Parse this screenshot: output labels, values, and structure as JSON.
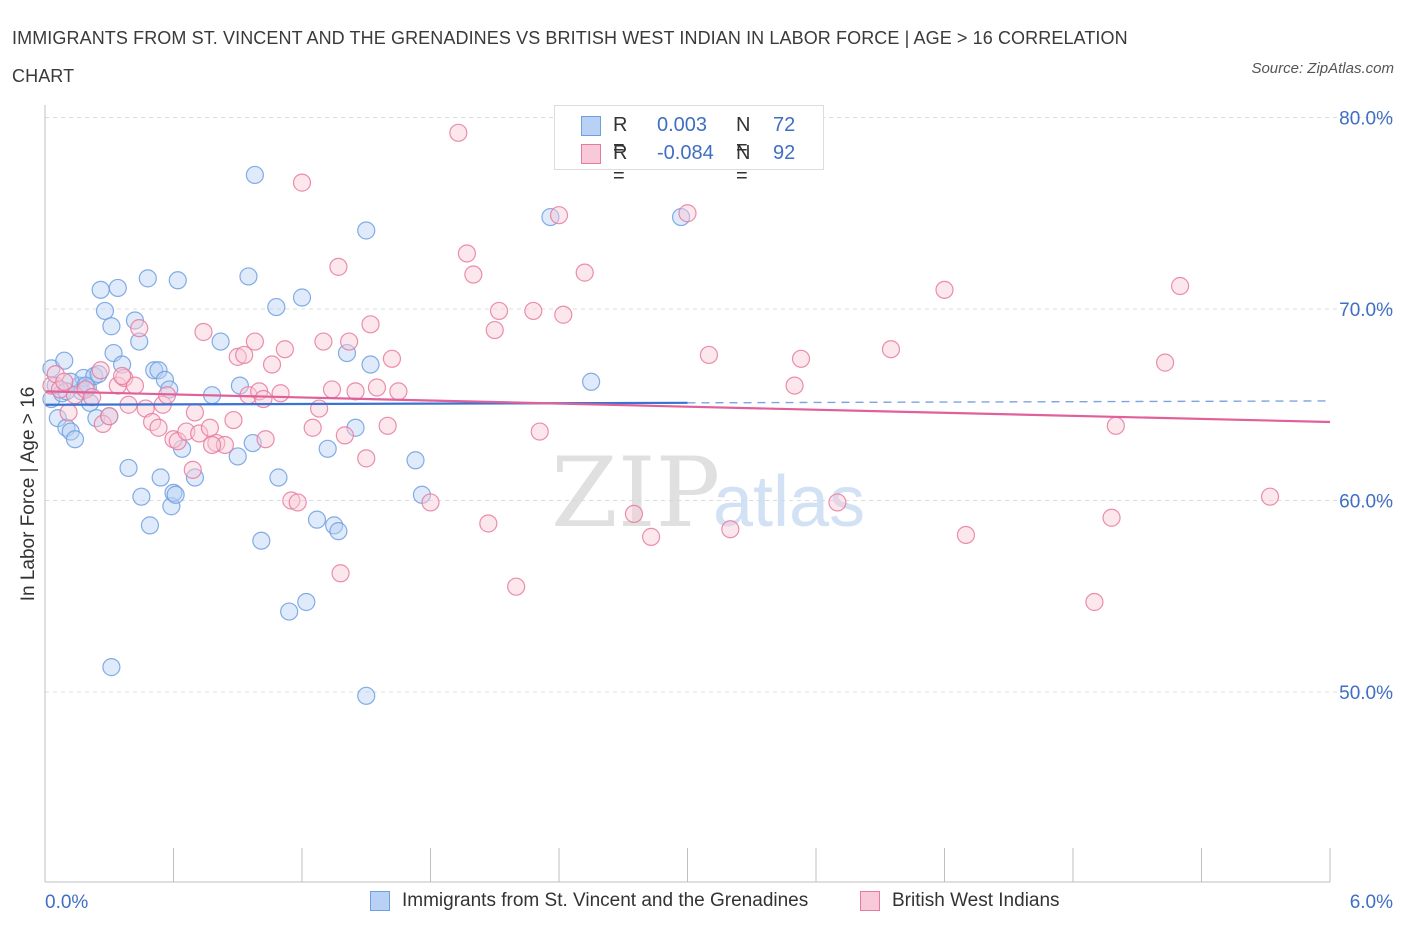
{
  "title": "IMMIGRANTS FROM ST. VINCENT AND THE GRENADINES VS BRITISH WEST INDIAN IN LABOR FORCE | AGE > 16 CORRELATION CHART",
  "source": "Source: ZipAtlas.com",
  "watermark": "ZIPatlas",
  "colors": {
    "blue": "#6f9fe0",
    "blue_fill": "#b9d1f5",
    "pink": "#e87aa0",
    "pink_fill": "#f8c9d8",
    "axis_text": "#3f6fc4"
  },
  "legend": {
    "rows": [
      {
        "r_label": "R =",
        "r_value": "0.003",
        "n_label": "N =",
        "n_value": "72",
        "color": "blue"
      },
      {
        "r_label": "R =",
        "r_value": "-0.084",
        "n_label": "N =",
        "n_value": "92",
        "color": "pink"
      }
    ]
  },
  "chart_data": {
    "type": "scatter",
    "title": "IMMIGRANTS FROM ST. VINCENT AND THE GRENADINES VS BRITISH WEST INDIAN IN LABOR FORCE | AGE > 16 CORRELATION CHART",
    "xlabel": "",
    "ylabel": "In Labor Force | Age > 16",
    "xlim": [
      0,
      6
    ],
    "ylim": [
      40,
      84
    ],
    "x_tick_labels": [
      "0.0%",
      "6.0%"
    ],
    "y_ticks": [
      50,
      60,
      70,
      80
    ],
    "y_tick_labels": [
      "50.0%",
      "60.0%",
      "70.0%",
      "80.0%"
    ],
    "grid": true,
    "series": [
      {
        "name": "Immigrants from St. Vincent and the Grenadines",
        "color": "blue",
        "trend": {
          "x": [
            0.0,
            3.0
          ],
          "y": [
            65.0,
            65.1
          ],
          "dashed_to": [
            6.0,
            65.2
          ]
        },
        "points": [
          [
            0.03,
            66.9
          ],
          [
            0.03,
            65.3
          ],
          [
            0.05,
            66.0
          ],
          [
            0.06,
            64.3
          ],
          [
            0.09,
            67.3
          ],
          [
            0.1,
            63.8
          ],
          [
            0.12,
            63.6
          ],
          [
            0.14,
            63.2
          ],
          [
            0.16,
            66.0
          ],
          [
            0.17,
            65.7
          ],
          [
            0.18,
            66.4
          ],
          [
            0.2,
            65.9
          ],
          [
            0.21,
            65.1
          ],
          [
            0.23,
            66.5
          ],
          [
            0.24,
            64.3
          ],
          [
            0.26,
            71.0
          ],
          [
            0.28,
            69.9
          ],
          [
            0.3,
            64.4
          ],
          [
            0.31,
            69.1
          ],
          [
            0.32,
            67.7
          ],
          [
            0.34,
            71.1
          ],
          [
            0.36,
            67.1
          ],
          [
            0.39,
            61.7
          ],
          [
            0.42,
            69.4
          ],
          [
            0.44,
            68.3
          ],
          [
            0.45,
            60.2
          ],
          [
            0.48,
            71.6
          ],
          [
            0.49,
            58.7
          ],
          [
            0.51,
            66.8
          ],
          [
            0.53,
            66.8
          ],
          [
            0.54,
            61.2
          ],
          [
            0.56,
            66.3
          ],
          [
            0.58,
            65.8
          ],
          [
            0.59,
            59.7
          ],
          [
            0.6,
            60.4
          ],
          [
            0.61,
            60.3
          ],
          [
            0.62,
            71.5
          ],
          [
            0.64,
            62.7
          ],
          [
            0.7,
            61.2
          ],
          [
            0.78,
            65.5
          ],
          [
            0.82,
            68.3
          ],
          [
            0.9,
            62.3
          ],
          [
            0.91,
            66.0
          ],
          [
            0.95,
            71.7
          ],
          [
            0.97,
            63.0
          ],
          [
            0.98,
            77.0
          ],
          [
            1.01,
            57.9
          ],
          [
            1.08,
            70.1
          ],
          [
            1.09,
            61.2
          ],
          [
            1.14,
            54.2
          ],
          [
            1.2,
            70.6
          ],
          [
            1.22,
            54.7
          ],
          [
            1.27,
            59.0
          ],
          [
            1.32,
            62.7
          ],
          [
            1.35,
            58.7
          ],
          [
            1.37,
            58.4
          ],
          [
            1.41,
            67.7
          ],
          [
            1.45,
            63.8
          ],
          [
            1.5,
            74.1
          ],
          [
            1.5,
            49.8
          ],
          [
            1.52,
            67.1
          ],
          [
            1.73,
            62.1
          ],
          [
            1.76,
            60.3
          ],
          [
            2.36,
            74.8
          ],
          [
            2.55,
            66.2
          ],
          [
            2.97,
            74.8
          ],
          [
            0.31,
            51.3
          ],
          [
            0.08,
            65.6
          ],
          [
            0.12,
            66.2
          ],
          [
            0.19,
            66.0
          ],
          [
            0.25,
            66.6
          ],
          [
            0.1,
            65.7
          ]
        ]
      },
      {
        "name": "British West Indians",
        "color": "pink",
        "trend": {
          "x": [
            0.0,
            6.0
          ],
          "y": [
            65.7,
            64.1
          ]
        },
        "points": [
          [
            0.03,
            66.0
          ],
          [
            0.05,
            66.6
          ],
          [
            0.07,
            65.8
          ],
          [
            0.09,
            66.2
          ],
          [
            0.11,
            64.6
          ],
          [
            0.14,
            65.5
          ],
          [
            0.19,
            65.8
          ],
          [
            0.22,
            65.4
          ],
          [
            0.26,
            66.8
          ],
          [
            0.27,
            64.0
          ],
          [
            0.3,
            64.4
          ],
          [
            0.34,
            66.0
          ],
          [
            0.37,
            66.4
          ],
          [
            0.39,
            65.0
          ],
          [
            0.42,
            66.0
          ],
          [
            0.44,
            69.0
          ],
          [
            0.47,
            64.8
          ],
          [
            0.5,
            64.1
          ],
          [
            0.53,
            63.8
          ],
          [
            0.55,
            65.0
          ],
          [
            0.57,
            65.5
          ],
          [
            0.6,
            63.2
          ],
          [
            0.62,
            63.1
          ],
          [
            0.66,
            63.6
          ],
          [
            0.69,
            61.6
          ],
          [
            0.7,
            64.6
          ],
          [
            0.72,
            63.5
          ],
          [
            0.74,
            68.8
          ],
          [
            0.77,
            63.8
          ],
          [
            0.8,
            63.0
          ],
          [
            0.84,
            62.9
          ],
          [
            0.88,
            64.2
          ],
          [
            0.9,
            67.5
          ],
          [
            0.93,
            67.6
          ],
          [
            0.95,
            65.5
          ],
          [
            0.98,
            68.3
          ],
          [
            1.0,
            65.7
          ],
          [
            1.03,
            63.2
          ],
          [
            1.06,
            67.1
          ],
          [
            1.1,
            65.6
          ],
          [
            1.12,
            67.9
          ],
          [
            1.15,
            60.0
          ],
          [
            1.18,
            59.9
          ],
          [
            1.2,
            76.6
          ],
          [
            1.25,
            63.8
          ],
          [
            1.28,
            64.8
          ],
          [
            1.3,
            68.3
          ],
          [
            1.34,
            65.8
          ],
          [
            1.37,
            72.2
          ],
          [
            1.4,
            63.4
          ],
          [
            1.42,
            68.3
          ],
          [
            1.45,
            65.7
          ],
          [
            1.5,
            62.2
          ],
          [
            1.52,
            69.2
          ],
          [
            1.55,
            65.9
          ],
          [
            1.6,
            63.9
          ],
          [
            1.62,
            67.4
          ],
          [
            1.65,
            65.7
          ],
          [
            1.8,
            59.9
          ],
          [
            1.93,
            79.2
          ],
          [
            1.97,
            72.9
          ],
          [
            2.0,
            71.8
          ],
          [
            2.07,
            58.8
          ],
          [
            2.1,
            68.9
          ],
          [
            2.12,
            69.9
          ],
          [
            2.2,
            55.5
          ],
          [
            2.28,
            69.9
          ],
          [
            2.31,
            63.6
          ],
          [
            2.4,
            74.9
          ],
          [
            2.42,
            69.7
          ],
          [
            2.52,
            71.9
          ],
          [
            2.75,
            59.3
          ],
          [
            2.83,
            58.1
          ],
          [
            3.0,
            75.0
          ],
          [
            3.1,
            67.6
          ],
          [
            3.2,
            58.5
          ],
          [
            3.5,
            66.0
          ],
          [
            3.53,
            67.4
          ],
          [
            3.7,
            59.9
          ],
          [
            3.95,
            67.9
          ],
          [
            4.2,
            71.0
          ],
          [
            4.3,
            58.2
          ],
          [
            4.9,
            54.7
          ],
          [
            4.98,
            59.1
          ],
          [
            5.0,
            63.9
          ],
          [
            5.23,
            67.2
          ],
          [
            5.3,
            71.2
          ],
          [
            5.72,
            60.2
          ],
          [
            1.38,
            56.2
          ],
          [
            1.02,
            65.3
          ],
          [
            0.36,
            66.5
          ],
          [
            0.78,
            62.9
          ]
        ]
      }
    ]
  }
}
